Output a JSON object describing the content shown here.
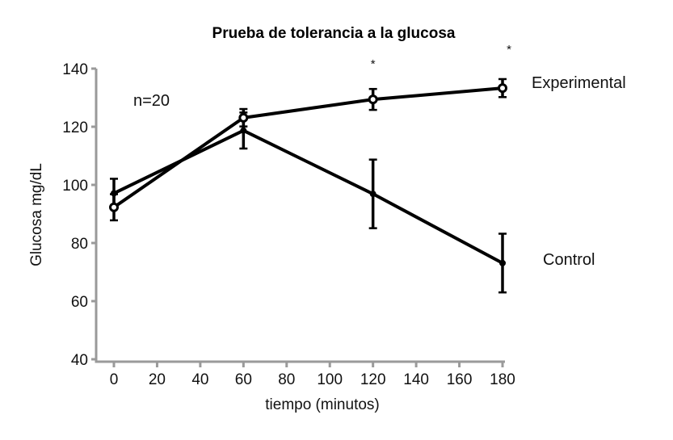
{
  "chart_data": {
    "type": "line",
    "title": "Prueba de tolerancia a la glucosa",
    "xlabel": "tiempo (minutos)",
    "ylabel": "Glucosa mg/dL",
    "xlim": [
      0,
      180
    ],
    "ylim": [
      40,
      140
    ],
    "xticks": [
      0,
      20,
      40,
      60,
      80,
      100,
      120,
      140,
      160,
      180
    ],
    "yticks": [
      40,
      60,
      80,
      100,
      120,
      140
    ],
    "grid": false,
    "annotation": "n=20",
    "significance_marker": "*",
    "significant_x": [
      120,
      180
    ],
    "x": [
      0,
      60,
      120,
      180
    ],
    "series": [
      {
        "name": "Experimental",
        "marker": "open-circle",
        "values": [
          92.3,
          123.1,
          129.4,
          133.3
        ],
        "error": [
          4.5,
          3,
          3.6,
          3.1
        ]
      },
      {
        "name": "Control",
        "marker": "filled-circle",
        "values": [
          97.1,
          118.7,
          96.9,
          73.1
        ],
        "error": [
          5,
          6.2,
          11.8,
          10.1
        ]
      }
    ]
  }
}
